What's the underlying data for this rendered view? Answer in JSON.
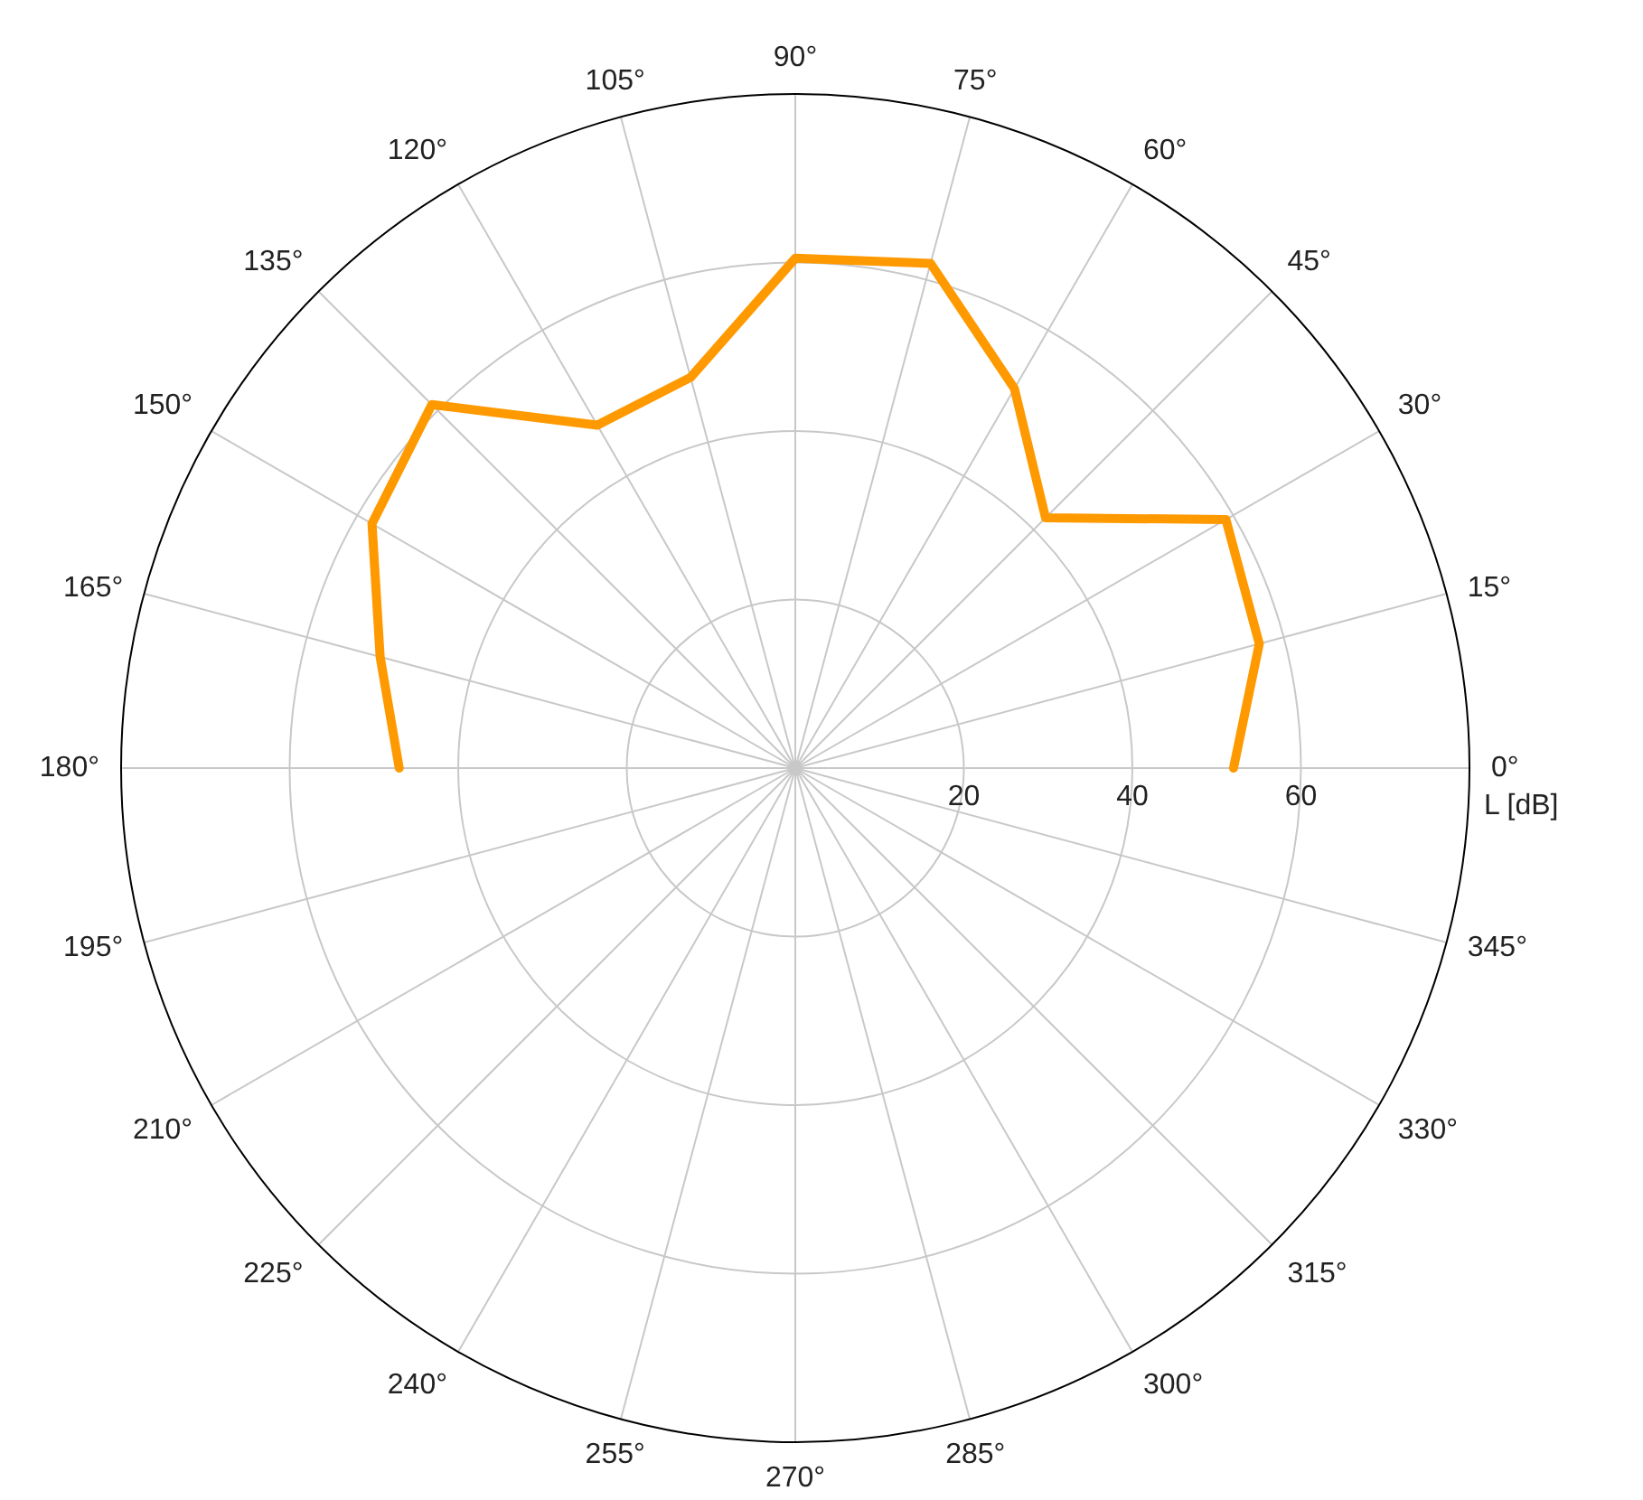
{
  "chart_data": {
    "type": "radar",
    "ylabel": "L [dB]",
    "categories": [
      "90°",
      "75°",
      "60°",
      "45°",
      "30°",
      "15°",
      "0°",
      "345°",
      "330°",
      "315°",
      "300°",
      "285°",
      "270°",
      "255°",
      "240°",
      "225°",
      "210°",
      "195°",
      "180°",
      "165°",
      "150°",
      "135°",
      "120°",
      "105°"
    ],
    "series": [
      {
        "color": "#ff9900",
        "values": [
          60.5,
          62,
          52,
          42,
          59,
          57,
          52,
          null,
          null,
          null,
          null,
          null,
          null,
          null,
          null,
          null,
          null,
          null,
          47,
          51,
          58,
          61,
          47,
          48
        ]
      }
    ],
    "ylim": [
      0,
      80
    ],
    "yticks": [
      20,
      40,
      60
    ],
    "grid": true,
    "marker": "none",
    "line_style": "solid"
  }
}
